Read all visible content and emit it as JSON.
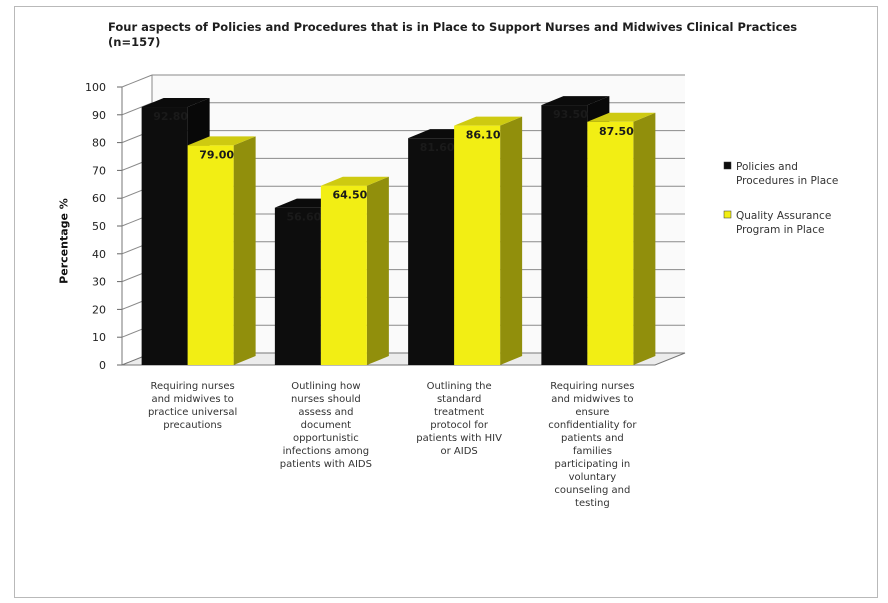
{
  "chart_data": {
    "type": "bar",
    "title": "Four aspects of Policies and Procedures that is in Place to Support Nurses and Midwives Clinical Practices (n=157)",
    "ylabel": "Percentage %",
    "xlabel": "",
    "ylim": [
      0,
      100
    ],
    "yticks": [
      "0",
      "10",
      "20",
      "30",
      "40",
      "50",
      "60",
      "70",
      "80",
      "90",
      "100"
    ],
    "categories": [
      [
        "Requiring nurses",
        "and midwives to",
        "practice universal",
        "precautions"
      ],
      [
        "Outlining how",
        "nurses should",
        "assess and",
        "document",
        "opportunistic",
        "infections among",
        "patients with AIDS"
      ],
      [
        "Outlining the",
        "standard",
        "treatment",
        "protocol for",
        "patients with HIV",
        "or AIDS"
      ],
      [
        "Requiring nurses",
        "and midwives to",
        "ensure",
        "confidentiality for",
        "patients and",
        "families",
        "participating in",
        "voluntary",
        "counseling and",
        "testing"
      ]
    ],
    "series": [
      {
        "name": "Policies and Procedures in Place",
        "legend_lines": [
          "Policies and",
          "Procedures in Place"
        ],
        "color": "#0d0d0d",
        "values": [
          92.8,
          56.6,
          81.6,
          93.5
        ],
        "labels": [
          "92.80",
          "56.60",
          "81.60",
          "93.50"
        ]
      },
      {
        "name": "Quality Assurance Program in Place",
        "legend_lines": [
          "Quality Assurance",
          "Program in Place"
        ],
        "color": "#f2ee14",
        "values": [
          79.0,
          64.5,
          86.1,
          87.5
        ],
        "labels": [
          "79.00",
          "64.50",
          "86.10",
          "87.50"
        ]
      }
    ],
    "grid": true,
    "legend_position": "right"
  }
}
